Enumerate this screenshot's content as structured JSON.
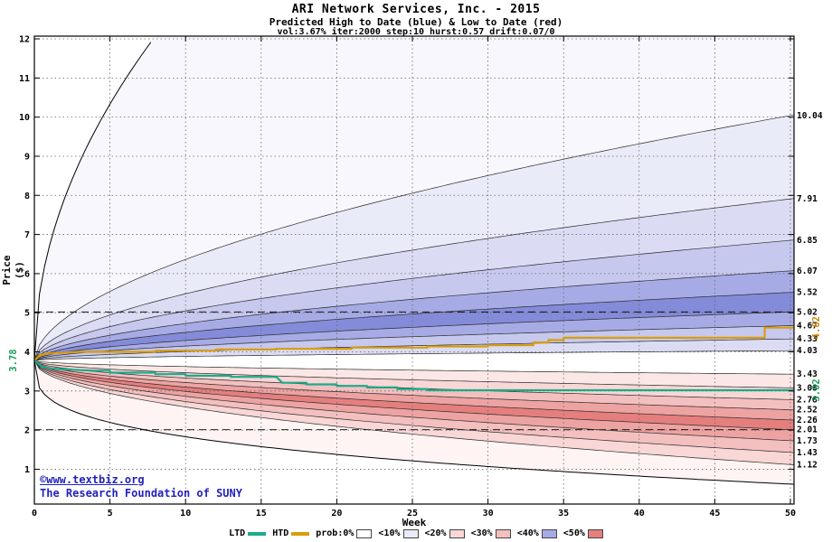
{
  "chart_data": {
    "type": "area",
    "subtype": "monte-carlo-fan-chart",
    "title": "ARI Network Services, Inc. - 2015",
    "subtitle": "Predicted High to Date (blue) &  Low to Date (red)",
    "params_line": "vol:3.67% iter:2000 step:10 hurst:0.57 drift:0.07/0",
    "xlabel": "Week",
    "ylabel": "Price ($)",
    "xlim": [
      0,
      50.24
    ],
    "ylim": [
      0.11,
      12.07
    ],
    "x_ticks": [
      0,
      5,
      10,
      15,
      20,
      25,
      30,
      35,
      40,
      45,
      50
    ],
    "y_ticks": [
      1,
      2,
      3,
      4,
      5,
      6,
      7,
      8,
      9,
      10,
      11,
      12
    ],
    "start_price": 3.78,
    "grid_color": "#666666",
    "band_edge_color": "#2a2a2a",
    "upper_fan": {
      "name": "predicted-high-to-date-distribution",
      "color_family": "blue",
      "curve_exponent": 0.55,
      "boundaries_at_week50": [
        10.04,
        7.91,
        6.85,
        6.07,
        5.52,
        5.02,
        4.67,
        4.33,
        4.03
      ],
      "band_colors": [
        "#f7f7fd",
        "#eaebf8",
        "#dbdcf4",
        "#c6c8ee",
        "#a7abe5",
        "#848bd9",
        "#a7abe5",
        "#c6c8ee",
        "#dbdcf4"
      ]
    },
    "lower_fan": {
      "name": "predicted-low-to-date-distribution",
      "color_family": "red",
      "curve_exponent": 0.5,
      "boundaries_at_week50": [
        3.43,
        3.08,
        2.78,
        2.52,
        2.26,
        2.01,
        1.73,
        1.43,
        1.12
      ],
      "band_colors": [
        "#fbe7e6",
        "#f8d7d6",
        "#f3c0bf",
        "#eda3a2",
        "#e57f7e",
        "#eda3a2",
        "#f3c0bf",
        "#f8d7d6",
        "#fdf4f3"
      ]
    },
    "envelope": {
      "max_exit_week": 8,
      "min_end_value": 0.62,
      "min_curve_exponent": 0.3
    },
    "median_dashed_lines": [
      5.02,
      2.01
    ],
    "series": [
      {
        "name": "HTD",
        "color": "#d99d0b",
        "final_value": 4.62,
        "points": [
          [
            0,
            3.78
          ],
          [
            0.4,
            3.92
          ],
          [
            1,
            3.96
          ],
          [
            3,
            4.0
          ],
          [
            8,
            4.0
          ],
          [
            8,
            4.03
          ],
          [
            12,
            4.03
          ],
          [
            12,
            4.06
          ],
          [
            16,
            4.06
          ],
          [
            16,
            4.08
          ],
          [
            21,
            4.08
          ],
          [
            21,
            4.11
          ],
          [
            26,
            4.11
          ],
          [
            26,
            4.14
          ],
          [
            30,
            4.14
          ],
          [
            30,
            4.17
          ],
          [
            33,
            4.17
          ],
          [
            33,
            4.24
          ],
          [
            34,
            4.24
          ],
          [
            34,
            4.3
          ],
          [
            35,
            4.3
          ],
          [
            35,
            4.36
          ],
          [
            36,
            4.36
          ],
          [
            48.3,
            4.36
          ],
          [
            48.3,
            4.62
          ],
          [
            50.24,
            4.62
          ]
        ]
      },
      {
        "name": "LTD",
        "color": "#1aab8a",
        "final_value": 3.02,
        "points": [
          [
            0,
            3.78
          ],
          [
            0.5,
            3.62
          ],
          [
            1,
            3.58
          ],
          [
            2,
            3.55
          ],
          [
            4,
            3.52
          ],
          [
            5,
            3.52
          ],
          [
            5,
            3.47
          ],
          [
            8,
            3.47
          ],
          [
            8,
            3.43
          ],
          [
            10,
            3.43
          ],
          [
            10,
            3.39
          ],
          [
            13,
            3.39
          ],
          [
            13,
            3.36
          ],
          [
            16,
            3.36
          ],
          [
            16.4,
            3.21
          ],
          [
            18,
            3.21
          ],
          [
            18,
            3.17
          ],
          [
            20,
            3.17
          ],
          [
            20,
            3.13
          ],
          [
            22,
            3.13
          ],
          [
            22,
            3.09
          ],
          [
            24,
            3.09
          ],
          [
            24,
            3.05
          ],
          [
            26,
            3.05
          ],
          [
            26,
            3.02
          ],
          [
            50.24,
            3.02
          ]
        ]
      }
    ],
    "right_edge_labels": [
      10.04,
      7.91,
      6.85,
      6.07,
      5.52,
      5.02,
      4.67,
      4.33,
      4.03,
      3.43,
      3.08,
      2.78,
      2.52,
      2.26,
      2.01,
      1.73,
      1.43,
      1.12
    ],
    "price_markers": {
      "start": {
        "text": "3.78",
        "price": 3.78,
        "color": "#18a05a"
      },
      "htd_final": {
        "text": "4.62",
        "price": 4.62,
        "color": "#c8860a"
      },
      "ltd_final": {
        "text": "3.02",
        "price": 3.02,
        "color": "#18a05a"
      }
    }
  },
  "watermark": {
    "link_text": "©www.textbiz.org",
    "org_text": "The Research Foundation of SUNY",
    "color": "#2222bb"
  },
  "legend": {
    "items": [
      {
        "label": "LTD",
        "type": "line",
        "color": "#1aab8a"
      },
      {
        "label": "HTD",
        "type": "line",
        "color": "#d99d0b"
      },
      {
        "label": "prob:0%",
        "type": "box",
        "color": "#ffffff"
      },
      {
        "label": "<10%",
        "type": "box",
        "color": "#eaebf8"
      },
      {
        "label": "<20%",
        "type": "box",
        "color": "#f8d7d6"
      },
      {
        "label": "<30%",
        "type": "box",
        "color": "#f3c0bf"
      },
      {
        "label": "<40%",
        "type": "box",
        "color": "#a7abe5"
      },
      {
        "label": "<50%",
        "type": "box",
        "color": "#e57f7e"
      }
    ]
  }
}
